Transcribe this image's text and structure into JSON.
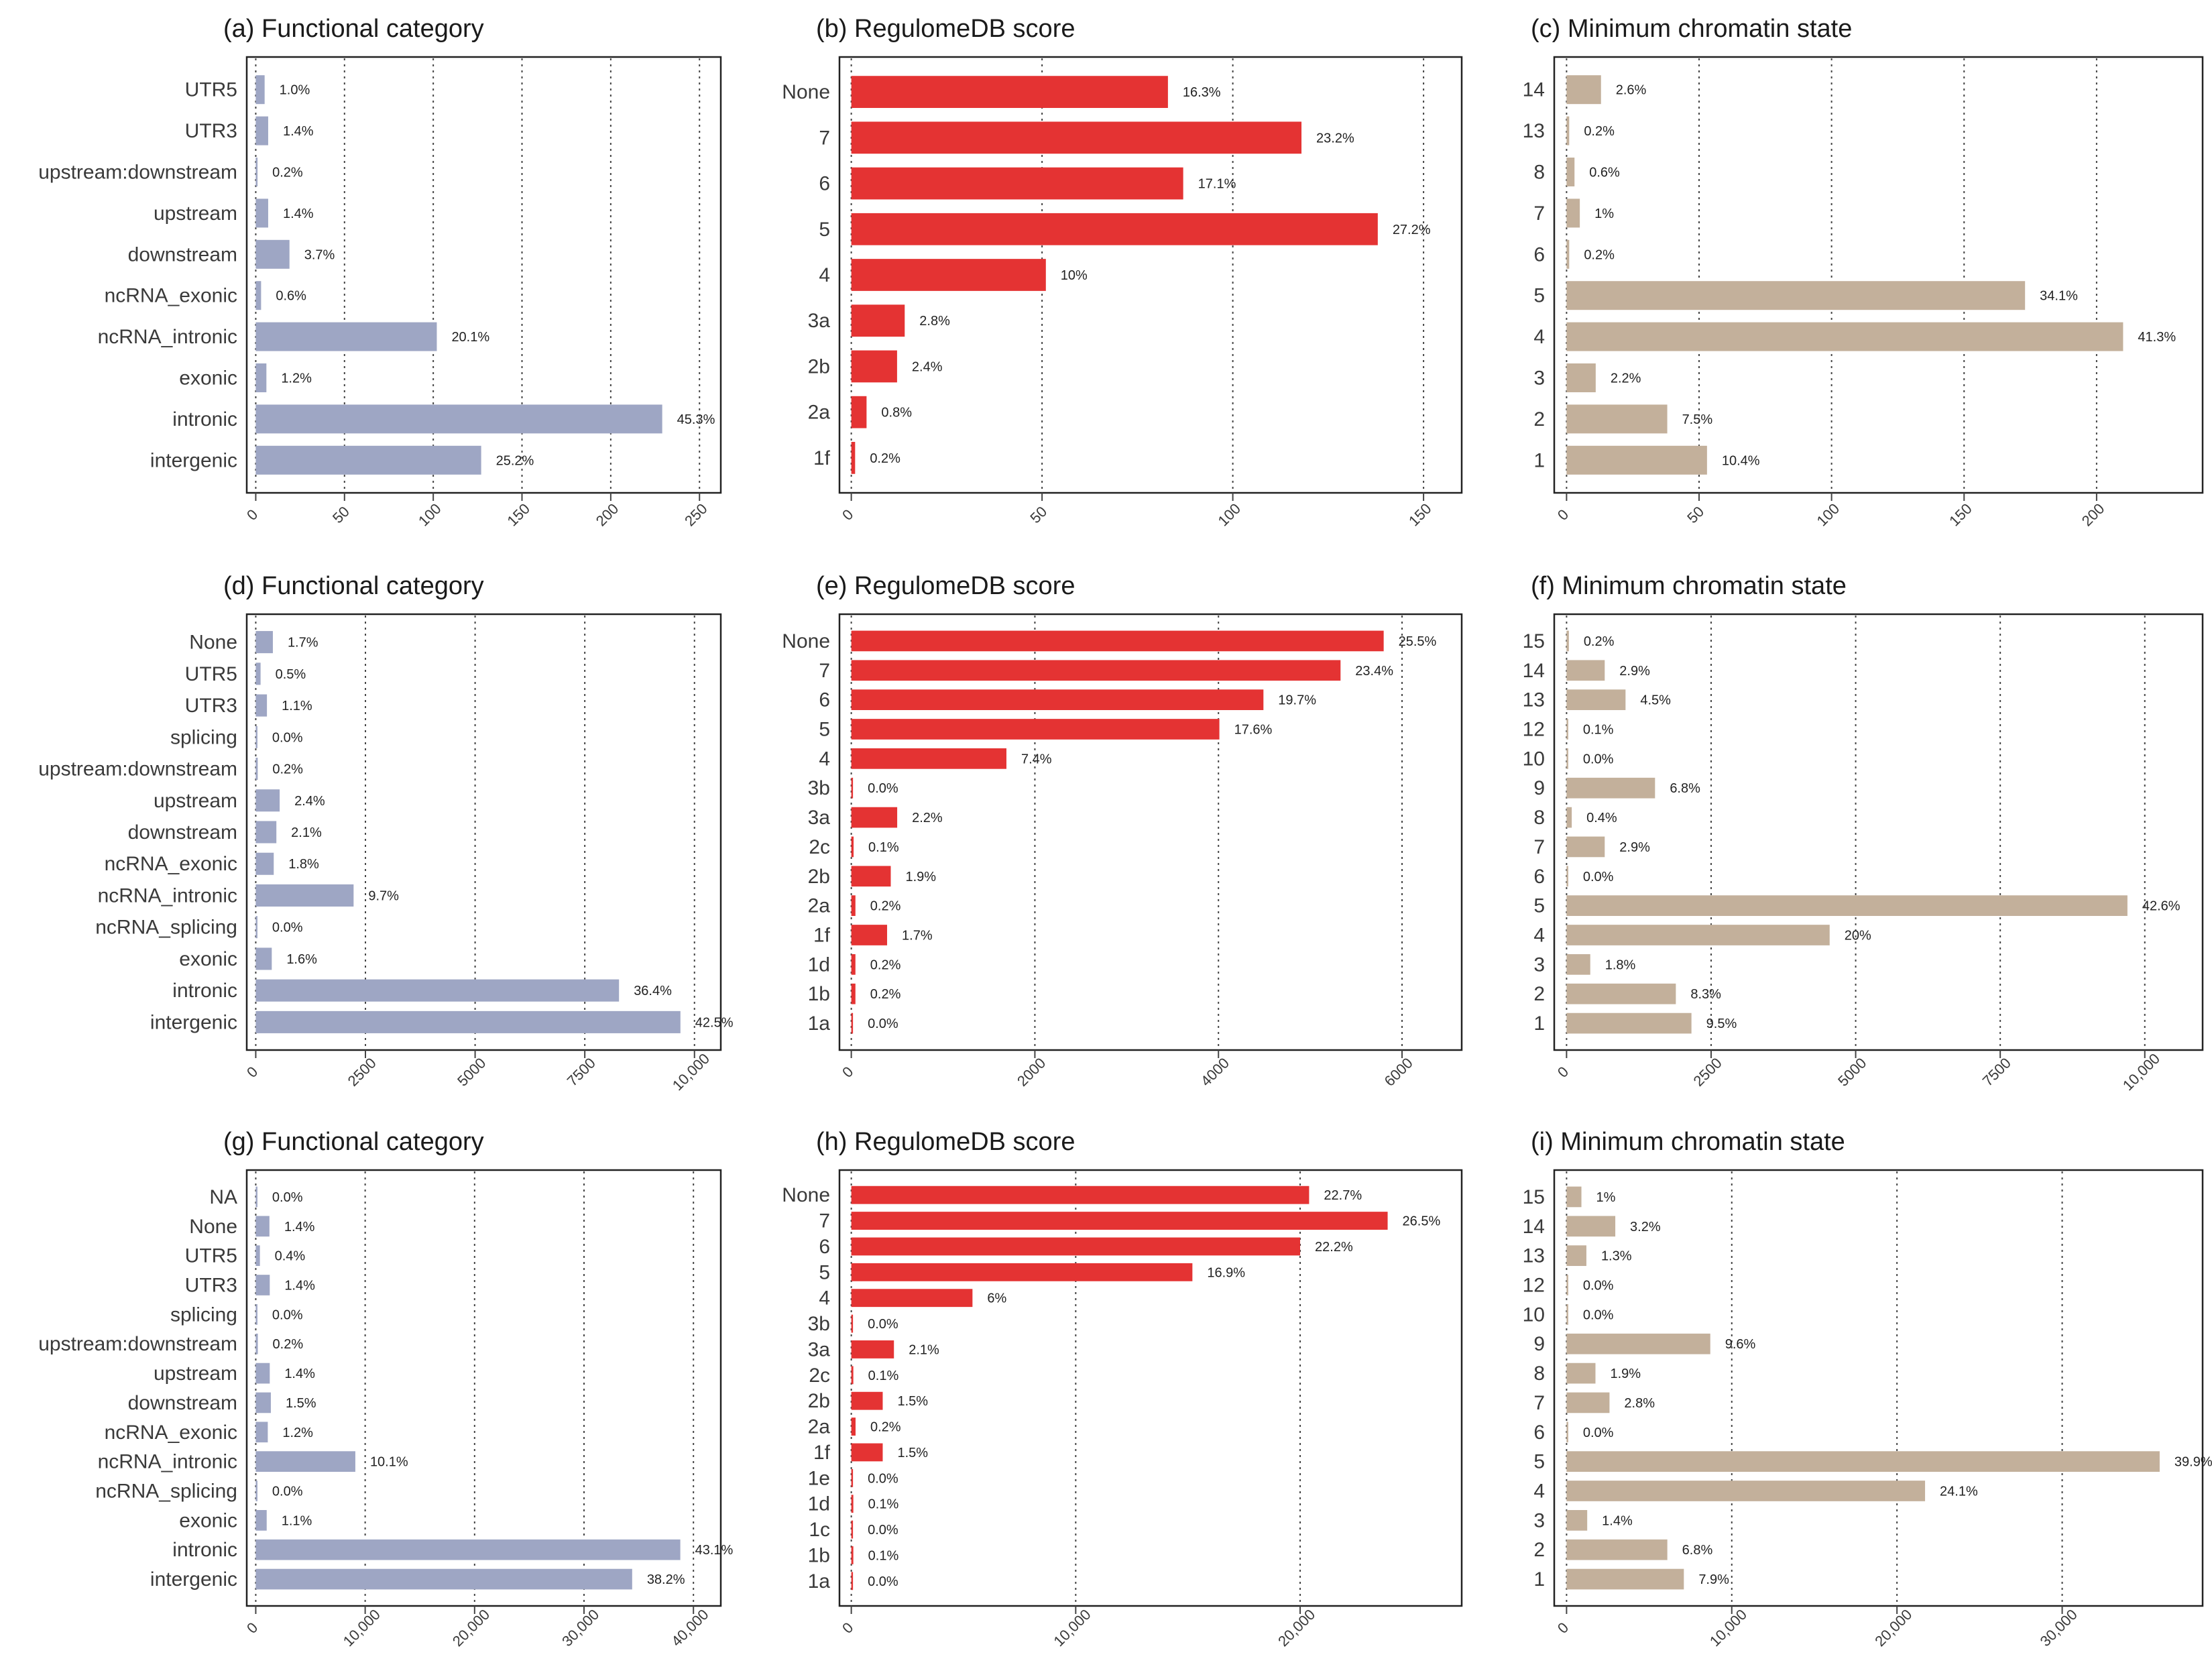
{
  "colors": {
    "functional": "#9ea6c4",
    "regulome": "#e43333",
    "chromatin": "#c3b09b"
  },
  "chart_data": [
    {
      "type": "bar",
      "orientation": "horizontal",
      "title": "(a) Functional category",
      "color_key": "functional",
      "categories": [
        "UTR5",
        "UTR3",
        "upstream:downstream",
        "upstream",
        "downstream",
        "ncRNA_exonic",
        "ncRNA_intronic",
        "exonic",
        "intronic",
        "intergenic"
      ],
      "values": [
        5,
        7,
        1,
        7,
        19,
        3,
        102,
        6,
        229,
        127
      ],
      "labels": [
        "1.0%",
        "1.4%",
        "0.2%",
        "1.4%",
        "3.7%",
        "0.6%",
        "20.1%",
        "1.2%",
        "45.3%",
        "25.2%"
      ],
      "xticks": [
        0,
        50,
        100,
        150,
        200,
        250
      ],
      "xtick_labels": [
        "0",
        "50",
        "100",
        "150",
        "200",
        "250"
      ],
      "xlim": [
        0,
        262
      ]
    },
    {
      "type": "bar",
      "orientation": "horizontal",
      "title": "(b) RegulomeDB score",
      "color_key": "regulome",
      "categories": [
        "None",
        "7",
        "6",
        "5",
        "4",
        "3a",
        "2b",
        "2a",
        "1f"
      ],
      "values": [
        83,
        118,
        87,
        138,
        51,
        14,
        12,
        4,
        1
      ],
      "labels": [
        "16.3%",
        "23.2%",
        "17.1%",
        "27.2%",
        "10%",
        "2.8%",
        "2.4%",
        "0.8%",
        "0.2%"
      ],
      "xticks": [
        0,
        50,
        100,
        150
      ],
      "xtick_labels": [
        "0",
        "50",
        "100",
        "150"
      ],
      "xlim": [
        0,
        160
      ]
    },
    {
      "type": "bar",
      "orientation": "horizontal",
      "title": "(c) Minimum chromatin state",
      "color_key": "chromatin",
      "categories": [
        "14",
        "13",
        "8",
        "7",
        "6",
        "5",
        "4",
        "3",
        "2",
        "1"
      ],
      "values": [
        13,
        1,
        3,
        5,
        1,
        173,
        210,
        11,
        38,
        53
      ],
      "labels": [
        "2.6%",
        "0.2%",
        "0.6%",
        "1%",
        "0.2%",
        "34.1%",
        "41.3%",
        "2.2%",
        "7.5%",
        "10.4%"
      ],
      "xticks": [
        0,
        50,
        100,
        150,
        200
      ],
      "xtick_labels": [
        "0",
        "50",
        "100",
        "150",
        "200"
      ],
      "xlim": [
        0,
        240
      ]
    },
    {
      "type": "bar",
      "orientation": "horizontal",
      "title": "(d) Functional category",
      "color_key": "functional",
      "categories": [
        "None",
        "UTR5",
        "UTR3",
        "splicing",
        "upstream:downstream",
        "upstream",
        "downstream",
        "ncRNA_exonic",
        "ncRNA_intronic",
        "ncRNA_splicing",
        "exonic",
        "intronic",
        "intergenic"
      ],
      "values": [
        390,
        110,
        255,
        5,
        45,
        545,
        470,
        410,
        2230,
        5,
        365,
        8280,
        9680
      ],
      "labels": [
        "1.7%",
        "0.5%",
        "1.1%",
        "0.0%",
        "0.2%",
        "2.4%",
        "2.1%",
        "1.8%",
        "9.7%",
        "0.0%",
        "1.6%",
        "36.4%",
        "42.5%"
      ],
      "xticks": [
        0,
        2500,
        5000,
        7500,
        10000
      ],
      "xtick_labels": [
        "0",
        "2500",
        "5000",
        "7500",
        "10,000"
      ],
      "xlim": [
        0,
        10600
      ]
    },
    {
      "type": "bar",
      "orientation": "horizontal",
      "title": "(e) RegulomeDB score",
      "color_key": "regulome",
      "categories": [
        "None",
        "7",
        "6",
        "5",
        "4",
        "3b",
        "3a",
        "2c",
        "2b",
        "2a",
        "1f",
        "1d",
        "1b",
        "1a"
      ],
      "values": [
        5800,
        5330,
        4490,
        4010,
        1690,
        5,
        500,
        25,
        430,
        45,
        390,
        45,
        45,
        5
      ],
      "labels": [
        "25.5%",
        "23.4%",
        "19.7%",
        "17.6%",
        "7.4%",
        "0.0%",
        "2.2%",
        "0.1%",
        "1.9%",
        "0.2%",
        "1.7%",
        "0.2%",
        "0.2%",
        "0.0%"
      ],
      "xticks": [
        0,
        2000,
        4000,
        6000
      ],
      "xtick_labels": [
        "0",
        "2000",
        "4000",
        "6000"
      ],
      "xlim": [
        0,
        6650
      ]
    },
    {
      "type": "bar",
      "orientation": "horizontal",
      "title": "(f) Minimum chromatin state",
      "color_key": "chromatin",
      "categories": [
        "15",
        "14",
        "13",
        "12",
        "10",
        "9",
        "8",
        "7",
        "6",
        "5",
        "4",
        "3",
        "2",
        "1"
      ],
      "values": [
        40,
        660,
        1020,
        20,
        5,
        1530,
        90,
        660,
        5,
        9700,
        4550,
        410,
        1890,
        2160
      ],
      "labels": [
        "0.2%",
        "2.9%",
        "4.5%",
        "0.1%",
        "0.0%",
        "6.8%",
        "0.4%",
        "2.9%",
        "0.0%",
        "42.6%",
        "20%",
        "1.8%",
        "8.3%",
        "9.5%"
      ],
      "xticks": [
        0,
        2500,
        5000,
        7500,
        10000
      ],
      "xtick_labels": [
        "0",
        "2500",
        "5000",
        "7500",
        "10,000"
      ],
      "xlim": [
        0,
        11000
      ]
    },
    {
      "type": "bar",
      "orientation": "horizontal",
      "title": "(g) Functional category",
      "color_key": "functional",
      "categories": [
        "NA",
        "None",
        "UTR5",
        "UTR3",
        "splicing",
        "upstream:downstream",
        "upstream",
        "downstream",
        "ncRNA_exonic",
        "ncRNA_intronic",
        "ncRNA_splicing",
        "exonic",
        "intronic",
        "intergenic"
      ],
      "values": [
        50,
        1250,
        380,
        1280,
        30,
        190,
        1280,
        1380,
        1100,
        9100,
        30,
        1000,
        38800,
        34400
      ],
      "labels": [
        "0.0%",
        "1.4%",
        "0.4%",
        "1.4%",
        "0.0%",
        "0.2%",
        "1.4%",
        "1.5%",
        "1.2%",
        "10.1%",
        "0.0%",
        "1.1%",
        "43.1%",
        "38.2%"
      ],
      "xticks": [
        0,
        10000,
        20000,
        30000,
        40000
      ],
      "xtick_labels": [
        "0",
        "10,000",
        "20,000",
        "30,000",
        "40,000"
      ],
      "xlim": [
        0,
        42500
      ]
    },
    {
      "type": "bar",
      "orientation": "horizontal",
      "title": "(h) RegulomeDB score",
      "color_key": "regulome",
      "categories": [
        "None",
        "7",
        "6",
        "5",
        "4",
        "3b",
        "3a",
        "2c",
        "2b",
        "2a",
        "1f",
        "1e",
        "1d",
        "1c",
        "1b",
        "1a"
      ],
      "values": [
        20400,
        23900,
        20000,
        15200,
        5400,
        30,
        1900,
        90,
        1400,
        190,
        1400,
        20,
        90,
        20,
        90,
        20
      ],
      "labels": [
        "22.7%",
        "26.5%",
        "22.2%",
        "16.9%",
        "6%",
        "0.0%",
        "2.1%",
        "0.1%",
        "1.5%",
        "0.2%",
        "1.5%",
        "0.0%",
        "0.1%",
        "0.0%",
        "0.1%",
        "0.0%"
      ],
      "xticks": [
        0,
        10000,
        20000
      ],
      "xtick_labels": [
        "0",
        "10,000",
        "20,000"
      ],
      "xlim": [
        0,
        27200
      ]
    },
    {
      "type": "bar",
      "orientation": "horizontal",
      "title": "(i) Minimum chromatin state",
      "color_key": "chromatin",
      "categories": [
        "15",
        "14",
        "13",
        "12",
        "10",
        "9",
        "8",
        "7",
        "6",
        "5",
        "4",
        "3",
        "2",
        "1"
      ],
      "values": [
        900,
        2950,
        1200,
        30,
        30,
        8700,
        1750,
        2600,
        30,
        35900,
        21700,
        1250,
        6100,
        7100
      ],
      "labels": [
        "1%",
        "3.2%",
        "1.3%",
        "0.0%",
        "0.0%",
        "9.6%",
        "1.9%",
        "2.8%",
        "0.0%",
        "39.9%",
        "24.1%",
        "1.4%",
        "6.8%",
        "7.9%"
      ],
      "xticks": [
        0,
        10000,
        20000,
        30000
      ],
      "xtick_labels": [
        "0",
        "10,000",
        "20,000",
        "30,000"
      ],
      "xlim": [
        0,
        38500
      ]
    }
  ]
}
